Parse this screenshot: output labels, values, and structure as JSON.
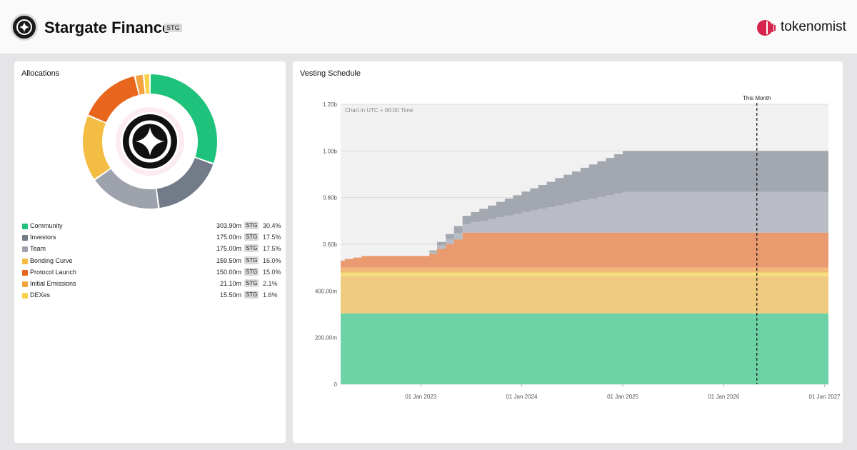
{
  "header": {
    "project_name": "Stargate Finance",
    "ticker": "STG",
    "brand": "tokenomist",
    "brand_color": "#d6244f"
  },
  "allocations": {
    "title": "Allocations",
    "items": [
      {
        "label": "Community",
        "amount": "303.90m",
        "unit": "STG",
        "percent": "30.4%",
        "value": 303.9,
        "color": "#1ec27a"
      },
      {
        "label": "Investors",
        "amount": "175.00m",
        "unit": "STG",
        "percent": "17.5%",
        "value": 175.0,
        "color": "#737b89"
      },
      {
        "label": "Team",
        "amount": "175.00m",
        "unit": "STG",
        "percent": "17.5%",
        "value": 175.0,
        "color": "#9ea2ac"
      },
      {
        "label": "Bonding Curve",
        "amount": "159.50m",
        "unit": "STG",
        "percent": "16.0%",
        "value": 159.5,
        "color": "#f2bd42"
      },
      {
        "label": "Protocol Launch",
        "amount": "150.00m",
        "unit": "STG",
        "percent": "15.0%",
        "value": 150.0,
        "color": "#e8651c"
      },
      {
        "label": "Initial Emissions",
        "amount": "21.10m",
        "unit": "STG",
        "percent": "2.1%",
        "value": 21.1,
        "color": "#f4a340"
      },
      {
        "label": "DEXes",
        "amount": "15.50m",
        "unit": "STG",
        "percent": "1.6%",
        "value": 15.5,
        "color": "#f8d24a"
      }
    ]
  },
  "vesting": {
    "title": "Vesting Schedule",
    "note": "Chart in UTC + 00:00 Time",
    "marker_label": "This Month",
    "y_ticks": [
      "0",
      "200.00m",
      "400.00m",
      "0.60b",
      "0.80b",
      "1.00b",
      "1.20b"
    ],
    "x_ticks": [
      "01 Jan 2023",
      "01 Jan 2024",
      "01 Jan 2025",
      "01 Jan 2026",
      "01 Jan 2027"
    ]
  },
  "chart_data": [
    {
      "type": "pie",
      "title": "Allocations",
      "categories": [
        "Community",
        "Investors",
        "Team",
        "Bonding Curve",
        "Protocol Launch",
        "Initial Emissions",
        "DEXes"
      ],
      "values": [
        303.9,
        175.0,
        175.0,
        159.5,
        150.0,
        21.1,
        15.5
      ],
      "colors": [
        "#1ec27a",
        "#737b89",
        "#9ea2ac",
        "#f2bd42",
        "#e8651c",
        "#f4a340",
        "#f8d24a"
      ]
    },
    {
      "type": "area",
      "title": "Vesting Schedule",
      "stacked": true,
      "x_unit": "date",
      "xlim": [
        "2022-03-17",
        "2027-01-15"
      ],
      "ylim": [
        0,
        1200
      ],
      "y_unit": "millions STG",
      "marker_x": "2026-05-01",
      "series": [
        {
          "name": "Community",
          "color": "#6dd3a6",
          "x": [
            "2022-03-17",
            "2027-01-15"
          ],
          "values": [
            303.9,
            303.9
          ]
        },
        {
          "name": "Bonding Curve",
          "color": "#f0cb7f",
          "x": [
            "2022-03-17",
            "2027-01-15"
          ],
          "values": [
            159.5,
            159.5
          ]
        },
        {
          "name": "DEXes",
          "color": "#f7df7e",
          "x": [
            "2022-03-17",
            "2027-01-15"
          ],
          "values": [
            15.5,
            15.5
          ]
        },
        {
          "name": "Initial Emissions",
          "color": "#f2b877",
          "x": [
            "2022-03-17",
            "2027-01-15"
          ],
          "values": [
            21.1,
            21.1
          ]
        },
        {
          "name": "Protocol Launch",
          "color": "#e99a6e",
          "x": [
            "2022-03-17",
            "2022-04-01",
            "2022-05-01",
            "2022-06-01",
            "2022-07-01",
            "2022-08-01",
            "2022-09-01",
            "2022-10-01",
            "2022-11-01",
            "2022-12-01",
            "2023-01-01",
            "2023-02-01",
            "2023-03-01",
            "2023-04-01",
            "2023-05-01",
            "2023-06-01",
            "2027-01-15"
          ],
          "values": [
            30,
            37,
            43,
            50,
            50,
            50,
            50,
            50,
            50,
            50,
            50,
            60,
            80,
            100,
            120,
            150,
            150
          ]
        },
        {
          "name": "Team",
          "color": "#b9bcc4",
          "x": [
            "2022-03-17",
            "2023-02-01",
            "2023-03-01",
            "2023-04-01",
            "2023-05-01",
            "2023-06-01",
            "2023-07-01",
            "2023-08-01",
            "2023-09-01",
            "2023-10-01",
            "2023-11-01",
            "2023-12-01",
            "2024-01-01",
            "2024-02-01",
            "2024-03-01",
            "2024-04-01",
            "2024-05-01",
            "2024-06-01",
            "2024-07-01",
            "2024-08-01",
            "2024-09-01",
            "2024-10-01",
            "2024-11-01",
            "2024-12-01",
            "2025-01-01",
            "2027-01-15"
          ],
          "values": [
            0,
            7,
            15,
            22,
            29,
            36,
            44,
            51,
            58,
            66,
            73,
            80,
            88,
            95,
            102,
            109,
            117,
            124,
            131,
            139,
            146,
            153,
            160,
            168,
            175,
            175
          ]
        },
        {
          "name": "Investors",
          "color": "#a2a7b0",
          "x": [
            "2022-03-17",
            "2023-02-01",
            "2023-03-01",
            "2023-04-01",
            "2023-05-01",
            "2023-06-01",
            "2023-07-01",
            "2023-08-01",
            "2023-09-01",
            "2023-10-01",
            "2023-11-01",
            "2023-12-01",
            "2024-01-01",
            "2024-02-01",
            "2024-03-01",
            "2024-04-01",
            "2024-05-01",
            "2024-06-01",
            "2024-07-01",
            "2024-08-01",
            "2024-09-01",
            "2024-10-01",
            "2024-11-01",
            "2024-12-01",
            "2025-01-01",
            "2027-01-15"
          ],
          "values": [
            0,
            7,
            15,
            22,
            29,
            36,
            44,
            51,
            58,
            66,
            73,
            80,
            88,
            95,
            102,
            109,
            117,
            124,
            131,
            139,
            146,
            153,
            160,
            168,
            175,
            175
          ]
        }
      ]
    }
  ]
}
